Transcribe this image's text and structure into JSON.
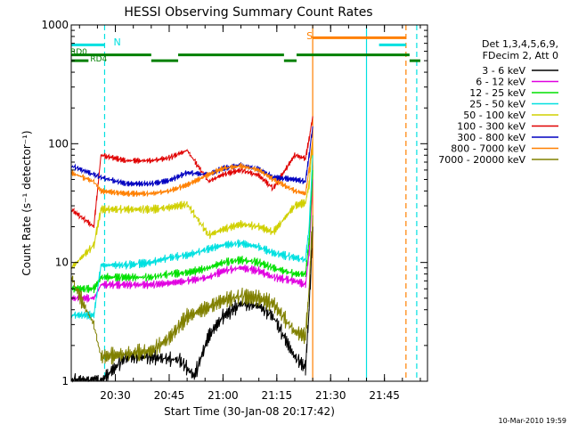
{
  "chart_data": {
    "type": "line",
    "title": "HESSI Observing Summary Count Rates",
    "xlabel": "Start Time (30-Jan-08 20:17:42)",
    "ylabel": "Count Rate (s⁻¹ detector⁻¹)",
    "y_scale": "log",
    "ylim": [
      1,
      1000
    ],
    "xlim": [
      "20:17:42",
      "21:57:00"
    ],
    "x_tick_labels": [
      "20:30",
      "20:45",
      "21:00",
      "21:15",
      "21:30",
      "21:45"
    ],
    "y_tick_labels": [
      "1",
      "10",
      "100",
      "1000"
    ],
    "grid": false,
    "legend_placement": "right",
    "legend_header": [
      "Det 1,3,4,5,6,9,",
      "FDecim 2, Att 0"
    ],
    "series": [
      {
        "name": "3 - 6 keV",
        "color": "#000000",
        "x": [
          "20:17:42",
          "20:24:00",
          "20:26:00",
          "20:33:00",
          "20:40:00",
          "20:48:00",
          "20:52:00",
          "20:56:00",
          "21:00:00",
          "21:05:00",
          "21:10:00",
          "21:14:00",
          "21:20:00",
          "21:23:00",
          "21:24:00",
          "21:25:00"
        ],
        "y": [
          1.0,
          1.0,
          1.0,
          1.6,
          1.6,
          1.5,
          1.1,
          2.4,
          3.5,
          4.5,
          4.3,
          3.5,
          1.6,
          1.3,
          4,
          20
        ]
      },
      {
        "name": "6 - 12 keV",
        "color": "#e000e0",
        "x": [
          "20:17:42",
          "20:24:00",
          "20:26:00",
          "20:33:00",
          "20:40:00",
          "20:45:00",
          "20:50:00",
          "20:56:00",
          "21:00:00",
          "21:05:00",
          "21:10:00",
          "21:14:00",
          "21:20:00",
          "21:23:00",
          "21:24:00",
          "21:25:00"
        ],
        "y": [
          5,
          5,
          6.5,
          6.5,
          6.5,
          6.7,
          7,
          7.5,
          8.5,
          9,
          8.5,
          7.5,
          7,
          6.5,
          12,
          50
        ]
      },
      {
        "name": "12 - 25 keV",
        "color": "#00e000",
        "x": [
          "20:17:42",
          "20:24:00",
          "20:26:00",
          "20:33:00",
          "20:40:00",
          "20:45:00",
          "20:50:00",
          "20:56:00",
          "21:00:00",
          "21:05:00",
          "21:10:00",
          "21:14:00",
          "21:20:00",
          "21:23:00",
          "21:24:00",
          "21:25:00"
        ],
        "y": [
          6,
          6,
          7.5,
          7.5,
          7.5,
          8,
          8.2,
          9,
          10,
          10.5,
          10,
          9,
          8,
          8,
          15,
          60
        ]
      },
      {
        "name": "25 - 50 keV",
        "color": "#00e0e0",
        "x": [
          "20:17:42",
          "20:24:00",
          "20:26:00",
          "20:33:00",
          "20:40:00",
          "20:45:00",
          "20:50:00",
          "20:56:00",
          "21:00:00",
          "21:05:00",
          "21:10:00",
          "21:14:00",
          "21:20:00",
          "21:23:00",
          "21:24:00",
          "21:25:00"
        ],
        "y": [
          3.6,
          3.6,
          9.5,
          9.5,
          10,
          11,
          11.5,
          13,
          14,
          14.5,
          13.5,
          12,
          11,
          10.5,
          20,
          80
        ]
      },
      {
        "name": "50 - 100 keV",
        "color": "#d0d000",
        "x": [
          "20:17:42",
          "20:24:00",
          "20:26:00",
          "20:33:00",
          "20:40:00",
          "20:45:00",
          "20:50:00",
          "20:56:00",
          "21:00:00",
          "21:05:00",
          "21:10:00",
          "21:14:00",
          "21:20:00",
          "21:23:00",
          "21:24:00",
          "21:25:00"
        ],
        "y": [
          9,
          14,
          28,
          28,
          28,
          29,
          31,
          17,
          19,
          21,
          20,
          18,
          30,
          32,
          45,
          110
        ]
      },
      {
        "name": "100 - 300 keV",
        "color": "#e00000",
        "x": [
          "20:17:42",
          "20:24:00",
          "20:26:00",
          "20:33:00",
          "20:40:00",
          "20:45:00",
          "20:50:00",
          "20:56:00",
          "21:00:00",
          "21:05:00",
          "21:10:00",
          "21:14:00",
          "21:20:00",
          "21:23:00",
          "21:24:00",
          "21:25:00"
        ],
        "y": [
          28,
          20,
          80,
          72,
          72,
          76,
          88,
          48,
          55,
          60,
          54,
          42,
          80,
          75,
          110,
          170
        ]
      },
      {
        "name": "300 - 800 keV",
        "color": "#0000c0",
        "x": [
          "20:17:42",
          "20:24:00",
          "20:26:00",
          "20:33:00",
          "20:40:00",
          "20:45:00",
          "20:50:00",
          "20:56:00",
          "21:00:00",
          "21:05:00",
          "21:10:00",
          "21:14:00",
          "21:20:00",
          "21:23:00",
          "21:24:00",
          "21:25:00"
        ],
        "y": [
          65,
          55,
          52,
          46,
          46,
          49,
          57,
          55,
          62,
          66,
          61,
          52,
          50,
          48,
          80,
          140
        ]
      },
      {
        "name": "800 - 7000 keV",
        "color": "#ff8000",
        "x": [
          "20:17:42",
          "20:24:00",
          "20:26:00",
          "20:33:00",
          "20:40:00",
          "20:45:00",
          "20:50:00",
          "20:56:00",
          "21:00:00",
          "21:05:00",
          "21:10:00",
          "21:14:00",
          "21:20:00",
          "21:23:00",
          "21:24:00",
          "21:25:00"
        ],
        "y": [
          57,
          48,
          40,
          38,
          38,
          40,
          45,
          55,
          62,
          65,
          60,
          50,
          40,
          38,
          60,
          110
        ]
      },
      {
        "name": "7000 - 20000 keV",
        "color": "#808000",
        "x": [
          "20:17:42",
          "20:19:00",
          "20:24:00",
          "20:26:00",
          "20:33:00",
          "20:40:00",
          "20:45:00",
          "20:50:00",
          "20:56:00",
          "21:00:00",
          "21:05:00",
          "21:10:00",
          "21:14:00",
          "21:20:00",
          "21:23:00",
          "21:24:00",
          "21:25:00"
        ],
        "y": [
          8,
          6,
          3,
          1.6,
          1.7,
          1.8,
          2.3,
          3.5,
          4.2,
          4.8,
          5.2,
          5,
          4.5,
          2.6,
          2.4,
          6,
          25
        ]
      }
    ],
    "annotations": [
      {
        "text": "N",
        "at": "20:27:30",
        "color": "#00e0e0"
      },
      {
        "text": "S",
        "at": "21:24:00",
        "color": "#ff8000"
      },
      {
        "text": "RD0",
        "at": "20:17:42",
        "color": "#008000"
      },
      {
        "text": "RD4",
        "at": "20:23:00",
        "color": "#008000"
      }
    ],
    "flag_bars": [
      {
        "name": "night",
        "color": "#00e0e0",
        "level": 680,
        "segments": [
          [
            "20:17:42",
            "20:27:00"
          ],
          [
            "21:43:30",
            "21:51:00"
          ]
        ]
      },
      {
        "name": "saa",
        "color": "#ff8000",
        "level": 780,
        "segments": [
          [
            "21:25:00",
            "21:51:00"
          ]
        ]
      },
      {
        "name": "decim_rd0",
        "color": "#008000",
        "level": 560,
        "segments": [
          [
            "20:17:42",
            "20:40:00"
          ],
          [
            "20:47:30",
            "21:17:00"
          ],
          [
            "21:20:30",
            "21:52:00"
          ]
        ]
      },
      {
        "name": "decim_rd4",
        "color": "#008000",
        "level": 500,
        "segments": [
          [
            "20:17:42",
            "20:22:30"
          ],
          [
            "20:40:00",
            "20:47:30"
          ],
          [
            "21:17:00",
            "21:20:30"
          ],
          [
            "21:52:00",
            "21:55:00"
          ]
        ]
      }
    ],
    "vlines": [
      {
        "at": "20:27:00",
        "color": "#00e0e0",
        "style": "dashed"
      },
      {
        "at": "21:25:00",
        "color": "#ff8000",
        "style": "solid"
      },
      {
        "at": "21:40:00",
        "color": "#00e0e0",
        "style": "solid"
      },
      {
        "at": "21:51:00",
        "color": "#ff8000",
        "style": "dashed"
      },
      {
        "at": "21:54:00",
        "color": "#00e0e0",
        "style": "dashed"
      }
    ]
  },
  "footer": {
    "datestamp": "10-Mar-2010 19:59"
  }
}
